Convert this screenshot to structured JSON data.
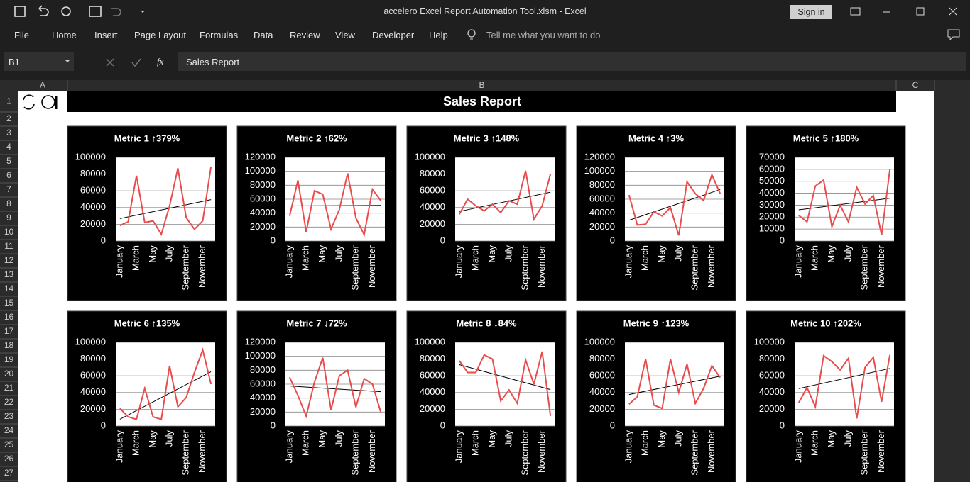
{
  "ui": {
    "window_title": "accelero Excel Report Automation Tool.xlsm  -  Excel",
    "sign_in": "Sign in",
    "tabs": [
      "File",
      "Home",
      "Insert",
      "Page Layout",
      "Formulas",
      "Data",
      "Review",
      "View",
      "Developer",
      "Help"
    ],
    "tell_me": "Tell me what you want to do",
    "name_box": "B1",
    "fx": "fx",
    "columns": [
      "A",
      "B",
      "C"
    ],
    "rows": [
      1,
      2,
      3,
      4,
      5,
      6,
      7,
      8,
      9,
      10,
      11,
      12,
      13,
      14,
      15,
      16,
      17,
      18,
      19,
      20,
      21,
      22,
      23,
      24,
      25,
      26,
      27
    ],
    "cell_b1": "Sales Report"
  },
  "chart_data": [
    {
      "type": "line",
      "title": "Metric 1 ↑379%",
      "categories": [
        "January",
        null,
        "March",
        null,
        "May",
        null,
        "July",
        null,
        "September",
        null,
        "November",
        null
      ],
      "values": [
        18500,
        23000,
        78000,
        22000,
        24000,
        8000,
        42000,
        87000,
        28000,
        14000,
        24000,
        89000
      ],
      "color": "#e84c4c",
      "trendline": true,
      "ylim": [
        0,
        100000
      ],
      "yticks": [
        0,
        20000,
        40000,
        60000,
        80000,
        100000
      ],
      "grid": true
    },
    {
      "type": "line",
      "title": "Metric 2 ↑62%",
      "categories": [
        "January",
        null,
        "March",
        null,
        "May",
        null,
        "July",
        null,
        "September",
        null,
        "November",
        null
      ],
      "values": [
        36000,
        87000,
        13000,
        72000,
        67000,
        17000,
        45000,
        97000,
        33000,
        9000,
        74000,
        58000
      ],
      "color": "#e84c4c",
      "trendline": true,
      "ylim": [
        0,
        120000
      ],
      "yticks": [
        0,
        20000,
        40000,
        60000,
        80000,
        100000,
        120000
      ],
      "grid": true
    },
    {
      "type": "line",
      "title": "Metric 3 ↑148%",
      "categories": [
        "January",
        null,
        "March",
        null,
        "May",
        null,
        "July",
        null,
        "September",
        null,
        "November",
        null
      ],
      "values": [
        32000,
        50000,
        42000,
        36000,
        44000,
        34000,
        48000,
        44000,
        84000,
        26000,
        42000,
        80000
      ],
      "color": "#e84c4c",
      "trendline": true,
      "ylim": [
        0,
        100000
      ],
      "yticks": [
        0,
        20000,
        40000,
        60000,
        80000,
        100000
      ],
      "grid": true
    },
    {
      "type": "line",
      "title": "Metric 4 ↑3%",
      "categories": [
        "January",
        null,
        "March",
        null,
        "May",
        null,
        "July",
        null,
        "September",
        null,
        "November",
        null
      ],
      "values": [
        66000,
        23000,
        24000,
        42000,
        36000,
        48000,
        8000,
        85000,
        68000,
        58000,
        95000,
        68000
      ],
      "color": "#e84c4c",
      "trendline": true,
      "ylim": [
        0,
        120000
      ],
      "yticks": [
        0,
        20000,
        40000,
        60000,
        80000,
        100000,
        120000
      ],
      "grid": true
    },
    {
      "type": "line",
      "title": "Metric 5 ↑180%",
      "categories": [
        "January",
        null,
        "March",
        null,
        "May",
        null,
        "July",
        null,
        "September",
        null,
        "November",
        null
      ],
      "values": [
        21500,
        16000,
        46000,
        51000,
        12000,
        30000,
        16000,
        45000,
        31000,
        38000,
        5000,
        60000
      ],
      "color": "#e84c4c",
      "trendline": true,
      "ylim": [
        0,
        70000
      ],
      "yticks": [
        0,
        10000,
        20000,
        30000,
        40000,
        50000,
        60000,
        70000
      ],
      "grid": true
    },
    {
      "type": "line",
      "title": "Metric 6 ↑135%",
      "categories": [
        "January",
        null,
        "March",
        null,
        "May",
        null,
        "July",
        null,
        "September",
        null,
        "November",
        null
      ],
      "values": [
        21000,
        11000,
        8000,
        45000,
        11000,
        8000,
        72000,
        23000,
        34000,
        64000,
        91000,
        50000
      ],
      "color": "#e84c4c",
      "trendline": true,
      "ylim": [
        0,
        100000
      ],
      "yticks": [
        0,
        20000,
        40000,
        60000,
        80000,
        100000
      ],
      "grid": true
    },
    {
      "type": "line",
      "title": "Metric 7 ↓72%",
      "categories": [
        "January",
        null,
        "March",
        null,
        "May",
        null,
        "July",
        null,
        "September",
        null,
        "November",
        null
      ],
      "values": [
        70000,
        44000,
        14000,
        63000,
        98000,
        23000,
        72000,
        80000,
        27000,
        68000,
        60000,
        20000
      ],
      "color": "#e84c4c",
      "trendline": true,
      "ylim": [
        0,
        120000
      ],
      "yticks": [
        0,
        20000,
        40000,
        60000,
        80000,
        100000,
        120000
      ],
      "grid": true
    },
    {
      "type": "line",
      "title": "Metric 8 ↓84%",
      "categories": [
        "January",
        null,
        "March",
        null,
        "May",
        null,
        "July",
        null,
        "September",
        null,
        "November",
        null
      ],
      "values": [
        78000,
        64000,
        64000,
        85000,
        80000,
        30000,
        43000,
        27000,
        79000,
        50000,
        89000,
        12000
      ],
      "color": "#e84c4c",
      "trendline": true,
      "ylim": [
        0,
        100000
      ],
      "yticks": [
        0,
        20000,
        40000,
        60000,
        80000,
        100000
      ],
      "grid": true
    },
    {
      "type": "line",
      "title": "Metric 9 ↑123%",
      "categories": [
        "January",
        null,
        "March",
        null,
        "May",
        null,
        "July",
        null,
        "September",
        null,
        "November",
        null
      ],
      "values": [
        26000,
        35000,
        80000,
        25000,
        21000,
        80000,
        40000,
        74000,
        27000,
        45000,
        72000,
        58000
      ],
      "color": "#e84c4c",
      "trendline": true,
      "ylim": [
        0,
        100000
      ],
      "yticks": [
        0,
        20000,
        40000,
        60000,
        80000,
        100000
      ],
      "grid": true
    },
    {
      "type": "line",
      "title": "Metric 10 ↑202%",
      "categories": [
        "January",
        null,
        "March",
        null,
        "May",
        null,
        "July",
        null,
        "September",
        null,
        "November",
        null
      ],
      "values": [
        28000,
        46000,
        23000,
        84000,
        77000,
        67000,
        81000,
        9000,
        70000,
        82000,
        29000,
        85000
      ],
      "color": "#e84c4c",
      "trendline": true,
      "ylim": [
        0,
        100000
      ],
      "yticks": [
        0,
        20000,
        40000,
        60000,
        80000,
        100000
      ],
      "grid": true
    }
  ]
}
